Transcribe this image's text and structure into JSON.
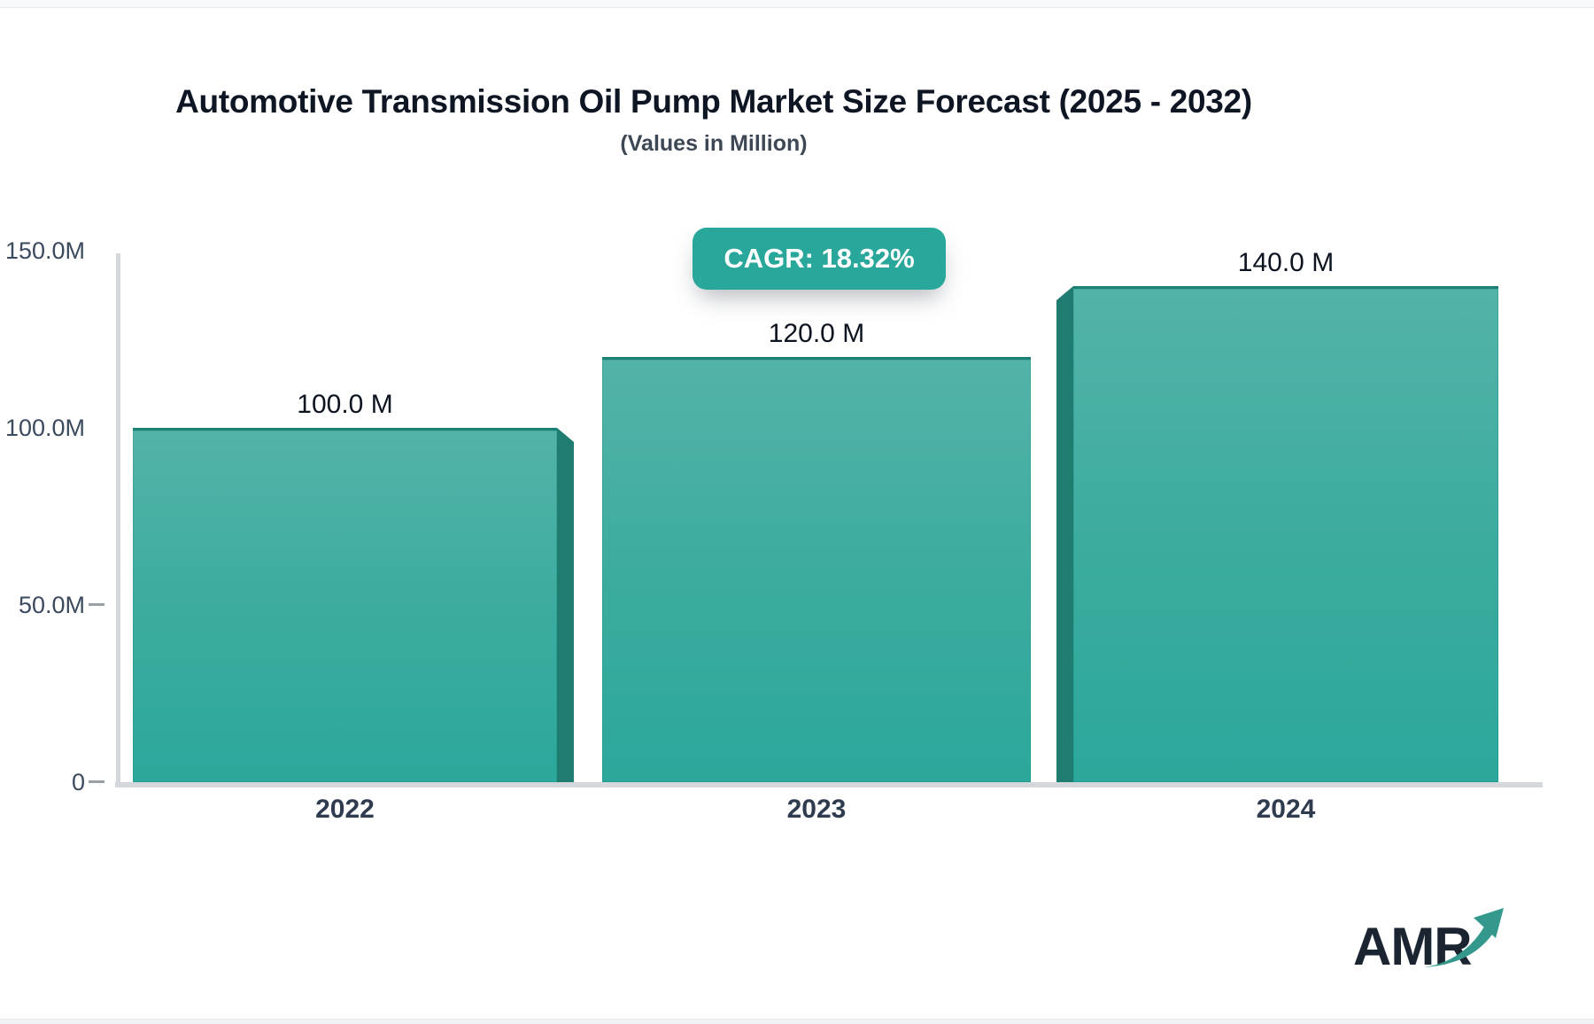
{
  "title": "Automotive Transmission Oil Pump Market Size Forecast (2025 - 2032)",
  "subtitle": "(Values in Million)",
  "cagr_label": "CAGR: 18.32%",
  "logo_text": "AMR",
  "colors": {
    "teal_accent": "#2AA79B",
    "bar_gradient_top": "#53B3A8",
    "bar_gradient_bottom": "#2BA89B",
    "bar_side_panel": "#1F7C71",
    "bar_top_edge": "#1B8176",
    "axis_line": "#D4D7DB",
    "axis_text": "#3C4A5E",
    "title_text": "#0E1624"
  },
  "chart_data": {
    "type": "bar",
    "title": "Automotive Transmission Oil Pump Market Size Forecast (2025 - 2032)",
    "subtitle": "(Values in Million)",
    "unit": "Million",
    "categories": [
      "2022",
      "2023",
      "2024"
    ],
    "values": [
      100.0,
      120.0,
      140.0
    ],
    "value_labels": [
      "100.0 M",
      "120.0 M",
      "140.0 M"
    ],
    "ylim": [
      0,
      150
    ],
    "yticks": [
      {
        "value": 150,
        "label": "150.0M",
        "dash": false
      },
      {
        "value": 100,
        "label": "100.0M",
        "dash": false
      },
      {
        "value": 50,
        "label": "50.0M",
        "dash": true
      },
      {
        "value": 0,
        "label": "0",
        "dash": true
      }
    ],
    "annotations": [
      "CAGR: 18.32%"
    ],
    "grid": false,
    "legend": "none"
  }
}
